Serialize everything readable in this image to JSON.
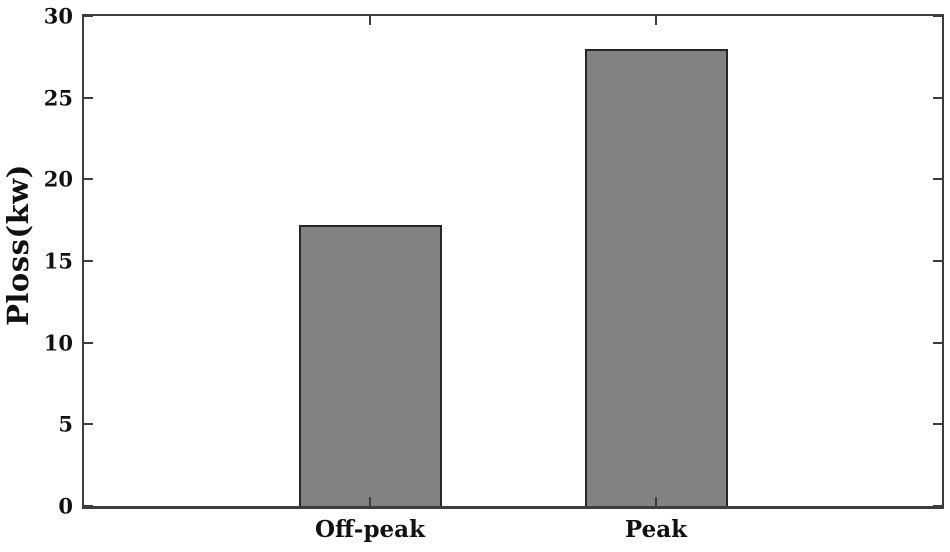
{
  "chart_data": {
    "type": "bar",
    "title": "",
    "xlabel": "",
    "ylabel": "Ploss(kw)",
    "categories": [
      "Off-peak",
      "Peak"
    ],
    "values": [
      17.2,
      28
    ],
    "x_positions": [
      1,
      2
    ],
    "xlim": [
      0,
      3
    ],
    "ylim": [
      0,
      30
    ],
    "yticks": [
      0,
      5,
      10,
      15,
      20,
      25,
      30
    ],
    "bar_width_units": 0.5,
    "grid": false,
    "legend_position": "none",
    "tick_direction": "in",
    "box": true,
    "colors": {
      "bar_fill": "#828282",
      "bar_edge": "#262626",
      "axis": "#3d3d3d",
      "text": "#111111",
      "background": "#ffffff"
    }
  }
}
